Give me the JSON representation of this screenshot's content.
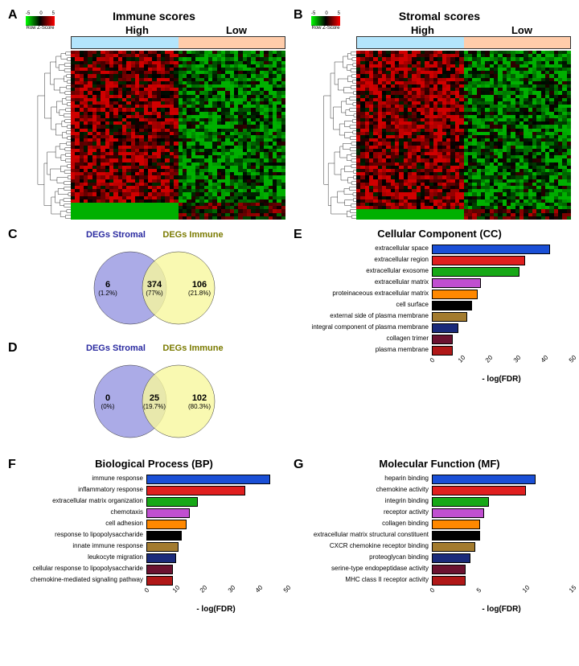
{
  "panelA": {
    "label": "A",
    "title": "Immune scores",
    "high": "High",
    "low": "Low",
    "zscore_ticks": [
      "-5",
      "0",
      "5"
    ],
    "zscore_label": "Row Z-Score",
    "group_high_color": "#b3e5fc",
    "group_low_color": "#ffccaa"
  },
  "panelB": {
    "label": "B",
    "title": "Stromal scores",
    "high": "High",
    "low": "Low",
    "zscore_ticks": [
      "-5",
      "0",
      "5"
    ],
    "zscore_label": "Row Z-Score"
  },
  "panelC": {
    "label": "C",
    "left_label": "DEGs Stromal",
    "right_label": "DEGs Immune",
    "left_n": "6",
    "left_pct": "(1.2%)",
    "mid_n": "374",
    "mid_pct": "(77%)",
    "right_n": "106",
    "right_pct": "(21.8%)",
    "left_color": "#9696e1",
    "right_color": "#f7f79e"
  },
  "panelD": {
    "label": "D",
    "left_label": "DEGs Stromal",
    "right_label": "DEGs Immune",
    "left_n": "0",
    "left_pct": "(0%)",
    "mid_n": "25",
    "mid_pct": "(19.7%)",
    "right_n": "102",
    "right_pct": "(80.3%)",
    "left_color": "#9696e1",
    "right_color": "#f7f79e"
  },
  "panelE": {
    "label": "E",
    "title": "Cellular Component (CC)",
    "xmax": 50,
    "xticks": [
      0,
      10,
      20,
      30,
      40,
      50
    ],
    "xlabel": "- log(FDR)",
    "bars": [
      {
        "label": "extracellular space",
        "value": 42,
        "color": "#1a4fd6"
      },
      {
        "label": "extracellular region",
        "value": 33,
        "color": "#e01f1f"
      },
      {
        "label": "extracellular exosome",
        "value": 31,
        "color": "#17a817"
      },
      {
        "label": "extracellular matrix",
        "value": 17,
        "color": "#c04fd0"
      },
      {
        "label": "proteinaceous extracellular matrix",
        "value": 16,
        "color": "#ff8800"
      },
      {
        "label": "cell surface",
        "value": 14,
        "color": "#000000"
      },
      {
        "label": "external side of plasma membrane",
        "value": 12,
        "color": "#a37b2e"
      },
      {
        "label": "integral component of plasma membrane",
        "value": 9,
        "color": "#1a2a7a"
      },
      {
        "label": "collagen trimer",
        "value": 7,
        "color": "#6b1230"
      },
      {
        "label": "plasma membrane",
        "value": 7,
        "color": "#b01818"
      }
    ]
  },
  "panelF": {
    "label": "F",
    "title": "Biological Process (BP)",
    "xmax": 50,
    "xticks": [
      0,
      10,
      20,
      30,
      40,
      50
    ],
    "xlabel": "- log(FDR)",
    "bars": [
      {
        "label": "immune response",
        "value": 44,
        "color": "#1a4fd6"
      },
      {
        "label": "inflammatory response",
        "value": 35,
        "color": "#e01f1f"
      },
      {
        "label": "extracellular matrix organization",
        "value": 18,
        "color": "#17a817"
      },
      {
        "label": "chemotaxis",
        "value": 15,
        "color": "#c04fd0"
      },
      {
        "label": "cell adhesion",
        "value": 14,
        "color": "#ff8800"
      },
      {
        "label": "response to lipopolysaccharide",
        "value": 12,
        "color": "#000000"
      },
      {
        "label": "innate immune response",
        "value": 11,
        "color": "#a37b2e"
      },
      {
        "label": "leukocyte migration",
        "value": 10,
        "color": "#1a2a7a"
      },
      {
        "label": "cellular response to lipopolysaccharide",
        "value": 9,
        "color": "#6b1230"
      },
      {
        "label": "chemokine-mediated signaling pathway",
        "value": 9,
        "color": "#b01818"
      }
    ]
  },
  "panelG": {
    "label": "G",
    "title": "Molecular Function (MF)",
    "xmax": 15,
    "xticks": [
      0,
      5,
      10,
      15
    ],
    "xlabel": "- log(FDR)",
    "bars": [
      {
        "label": "heparin binding",
        "value": 11,
        "color": "#1a4fd6"
      },
      {
        "label": "chemokine activity",
        "value": 10,
        "color": "#e01f1f"
      },
      {
        "label": "integrin binding",
        "value": 6,
        "color": "#17a817"
      },
      {
        "label": "receptor activity",
        "value": 5.5,
        "color": "#c04fd0"
      },
      {
        "label": "collagen binding",
        "value": 5,
        "color": "#ff8800"
      },
      {
        "label": "extracellular matrix structural constituent",
        "value": 5,
        "color": "#000000"
      },
      {
        "label": "CXCR chemokine receptor binding",
        "value": 4.5,
        "color": "#a37b2e"
      },
      {
        "label": "proteoglycan binding",
        "value": 4,
        "color": "#1a2a7a"
      },
      {
        "label": "serine-type endopeptidase activity",
        "value": 3.5,
        "color": "#6b1230"
      },
      {
        "label": "MHC class II receptor activity",
        "value": 3.5,
        "color": "#b01818"
      }
    ]
  },
  "heatmap_colors": {
    "low": "#00b000",
    "mid": "#000000",
    "high": "#d00000"
  }
}
